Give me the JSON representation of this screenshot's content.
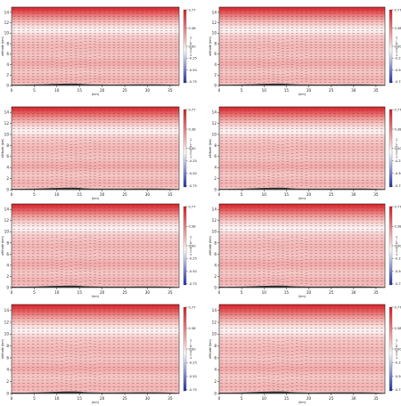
{
  "figure": {
    "panel_count": 8,
    "layout": "4 rows x 2 columns",
    "colormap": "white-to-red with blue for negative",
    "colors": {
      "red": "#d81f26",
      "white": "#ffffff",
      "blue": "#2431a6",
      "terrain": "#333333"
    }
  },
  "chart_data": [
    {
      "panel": "row1-left",
      "type": "heatmap",
      "xlabel": "(km)",
      "ylabel": "altitude (km)",
      "colorbar_label": "w (m/s) (10^-2)",
      "x_ticks": [
        "0",
        "5",
        "10",
        "15",
        "20",
        "25",
        "30",
        "35"
      ],
      "y_ticks": [
        "0",
        "2",
        "4",
        "6",
        "8",
        "10",
        "12",
        "14"
      ],
      "xlim": [
        0,
        37
      ],
      "ylim": [
        0,
        15
      ],
      "colorbar_ticks": [
        "0.77",
        "0.38",
        "0.00",
        "-0.25",
        "-0.50",
        "-0.75"
      ],
      "clim": [
        -0.77,
        0.77
      ],
      "grid": false
    },
    {
      "panel": "row1-right",
      "type": "heatmap",
      "xlabel": "(km)",
      "ylabel": "altitude (km)",
      "colorbar_label": "w (m/s) (10^-2)",
      "x_ticks": [
        "0",
        "5",
        "10",
        "15",
        "20",
        "25",
        "30",
        "35"
      ],
      "y_ticks": [
        "0",
        "2",
        "4",
        "6",
        "8",
        "10",
        "12",
        "14"
      ],
      "xlim": [
        0,
        37
      ],
      "ylim": [
        0,
        15
      ],
      "colorbar_ticks": [
        "0.77",
        "0.38",
        "0.00",
        "-0.25",
        "-0.50",
        "-0.75"
      ],
      "clim": [
        -0.77,
        0.77
      ],
      "grid": false
    },
    {
      "panel": "row2-left",
      "type": "heatmap",
      "xlabel": "(km)",
      "ylabel": "altitude (km)",
      "colorbar_label": "w (m/s) (10^-2)",
      "x_ticks": [
        "0",
        "5",
        "10",
        "15",
        "20",
        "25",
        "30",
        "35"
      ],
      "y_ticks": [
        "0",
        "2",
        "4",
        "6",
        "8",
        "10",
        "12",
        "14"
      ],
      "xlim": [
        0,
        37
      ],
      "ylim": [
        0,
        15
      ],
      "colorbar_ticks": [
        "0.77",
        "0.38",
        "0.00",
        "-0.25",
        "-0.50",
        "-0.75"
      ],
      "clim": [
        -0.77,
        0.77
      ],
      "grid": false
    },
    {
      "panel": "row2-right",
      "type": "heatmap",
      "xlabel": "(km)",
      "ylabel": "altitude (km)",
      "colorbar_label": "w (m/s) (10^-2)",
      "x_ticks": [
        "0",
        "5",
        "10",
        "15",
        "20",
        "25",
        "30",
        "35"
      ],
      "y_ticks": [
        "0",
        "2",
        "4",
        "6",
        "8",
        "10",
        "12",
        "14"
      ],
      "xlim": [
        0,
        37
      ],
      "ylim": [
        0,
        15
      ],
      "colorbar_ticks": [
        "0.77",
        "0.38",
        "0.00",
        "-0.25",
        "-0.50",
        "-0.75"
      ],
      "clim": [
        -0.77,
        0.77
      ],
      "grid": false
    },
    {
      "panel": "row3-left",
      "type": "heatmap",
      "xlabel": "(km)",
      "ylabel": "altitude (km)",
      "colorbar_label": "w (m/s) (10^-2)",
      "x_ticks": [
        "0",
        "5",
        "10",
        "15",
        "20",
        "25",
        "30",
        "35"
      ],
      "y_ticks": [
        "0",
        "2",
        "4",
        "6",
        "8",
        "10",
        "12",
        "14"
      ],
      "xlim": [
        0,
        37
      ],
      "ylim": [
        0,
        15
      ],
      "colorbar_ticks": [
        "0.77",
        "0.38",
        "0.00",
        "-0.25",
        "-0.50",
        "-0.75"
      ],
      "clim": [
        -0.77,
        0.77
      ],
      "grid": false
    },
    {
      "panel": "row3-right",
      "type": "heatmap",
      "xlabel": "(km)",
      "ylabel": "altitude (km)",
      "colorbar_label": "w (m/s) (10^-2)",
      "x_ticks": [
        "0",
        "5",
        "10",
        "15",
        "20",
        "25",
        "30",
        "35"
      ],
      "y_ticks": [
        "0",
        "2",
        "4",
        "6",
        "8",
        "10",
        "12",
        "14"
      ],
      "xlim": [
        0,
        37
      ],
      "ylim": [
        0,
        15
      ],
      "colorbar_ticks": [
        "0.77",
        "0.38",
        "0.00",
        "-0.25",
        "-0.50",
        "-0.75"
      ],
      "clim": [
        -0.77,
        0.77
      ],
      "grid": false
    },
    {
      "panel": "row4-left",
      "type": "heatmap",
      "xlabel": "(km)",
      "ylabel": "altitude (km)",
      "colorbar_label": "w (m/s) (10^-2)",
      "x_ticks": [
        "0",
        "5",
        "10",
        "15",
        "20",
        "25",
        "30",
        "35"
      ],
      "y_ticks": [
        "0",
        "2",
        "4",
        "6",
        "8",
        "10",
        "12",
        "14"
      ],
      "xlim": [
        0,
        37
      ],
      "ylim": [
        0,
        15
      ],
      "colorbar_ticks": [
        "0.77",
        "0.38",
        "0.00",
        "-0.25",
        "-0.50",
        "-0.75"
      ],
      "clim": [
        -0.77,
        0.77
      ],
      "grid": false
    },
    {
      "panel": "row4-right",
      "type": "heatmap",
      "xlabel": "(km)",
      "ylabel": "altitude (km)",
      "colorbar_label": "w (m/s) (10^-2)",
      "x_ticks": [
        "0",
        "5",
        "10",
        "15",
        "20",
        "25",
        "30",
        "35"
      ],
      "y_ticks": [
        "0",
        "2",
        "4",
        "6",
        "8",
        "10",
        "12",
        "14"
      ],
      "xlim": [
        0,
        37
      ],
      "ylim": [
        0,
        15
      ],
      "colorbar_ticks": [
        "0.77",
        "0.38",
        "0.00",
        "-0.25",
        "-0.50",
        "-0.75"
      ],
      "clim": [
        -0.77,
        0.77
      ],
      "grid": false
    }
  ]
}
